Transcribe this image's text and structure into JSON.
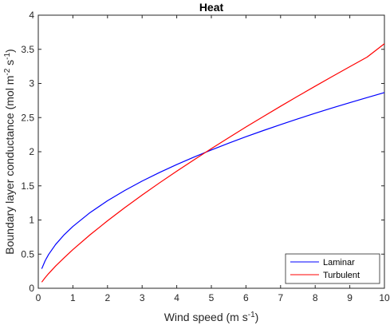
{
  "chart_data": {
    "type": "line",
    "title": "Heat",
    "xlabel": {
      "text": "Wind speed (m s",
      "sup": "-1",
      "tail": ")"
    },
    "ylabel": {
      "text": "Boundary layer conductance (mol m",
      "sup1": "-2",
      "mid": " s",
      "sup2": "-1",
      "tail": ")"
    },
    "xlim": [
      0,
      10
    ],
    "ylim": [
      0,
      4
    ],
    "xticks": [
      "0",
      "1",
      "2",
      "3",
      "4",
      "5",
      "6",
      "7",
      "8",
      "9",
      "10"
    ],
    "yticks": [
      "0",
      "0.5",
      "1",
      "1.5",
      "2",
      "2.5",
      "3",
      "3.5",
      "4"
    ],
    "grid": false,
    "legend_position": "bottom-right",
    "series": [
      {
        "name": "Laminar",
        "color": "#0000ff",
        "x": [
          0.1,
          0.2,
          0.3,
          0.5,
          0.75,
          1,
          1.5,
          2,
          2.5,
          3,
          3.5,
          4,
          4.5,
          5,
          5.5,
          6,
          6.5,
          7,
          7.5,
          8,
          8.5,
          9,
          9.5,
          10
        ],
        "y": [
          0.286,
          0.405,
          0.496,
          0.641,
          0.785,
          0.906,
          1.11,
          1.282,
          1.433,
          1.57,
          1.695,
          1.812,
          1.922,
          2.026,
          2.125,
          2.22,
          2.31,
          2.397,
          2.482,
          2.563,
          2.642,
          2.719,
          2.793,
          2.866
        ]
      },
      {
        "name": "Turbulent",
        "color": "#ff0000",
        "x": [
          0.1,
          0.2,
          0.3,
          0.5,
          0.75,
          1,
          1.5,
          2,
          2.5,
          3,
          3.5,
          4,
          4.5,
          5,
          5.5,
          6,
          6.5,
          7,
          7.5,
          8,
          8.5,
          9,
          9.5,
          10
        ],
        "y": [
          0.09,
          0.156,
          0.216,
          0.325,
          0.448,
          0.567,
          0.785,
          0.988,
          1.181,
          1.365,
          1.543,
          1.715,
          1.882,
          2.045,
          2.205,
          2.362,
          2.515,
          2.666,
          2.814,
          2.96,
          3.104,
          3.246,
          3.386,
          3.582
        ]
      }
    ]
  }
}
